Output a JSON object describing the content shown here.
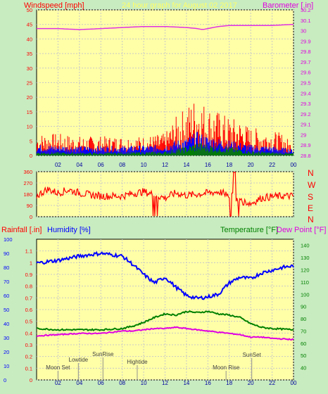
{
  "header": {
    "left_label": "Windspeed [mph]",
    "title": "24 hour graph for August 02 2017",
    "right_label": "Barometer [.in]"
  },
  "compass": [
    "N",
    "W",
    "S",
    "E",
    "N"
  ],
  "bottom_header": {
    "rainfall_label": "Rainfall [.in]",
    "humidity_label": "Humidity [%]",
    "temperature_label": "Temperature [°F]",
    "dewpoint_label": "Dew Point [°F]"
  },
  "events": [
    {
      "label": "Moon Set",
      "hour": 2.0
    },
    {
      "label": "Lowtide",
      "hour": 3.9
    },
    {
      "label": "SunRise",
      "hour": 6.2
    },
    {
      "label": "Hightide",
      "hour": 9.4
    },
    {
      "label": "Moon Rise",
      "hour": 17.7
    },
    {
      "label": "SunSet",
      "hour": 20.1
    }
  ],
  "colors": {
    "background": "#c8ecc0",
    "plot_bg": "#ffffa8",
    "windspeed": "#ff0000",
    "gust_avg": "#0000ff",
    "wind_green": "#008000",
    "barometer": "#e030e0",
    "humidity": "#0000ff",
    "temperature": "#008000",
    "dewpoint": "#e000e0",
    "direction": "#ff0000",
    "axis_left": "#ff0000",
    "axis_right": "#e000e0"
  },
  "chart_data": [
    {
      "type": "area",
      "title": "24 hour graph for August 02 2017",
      "ylabel": "Windspeed [mph]",
      "y2label": "Barometer [.in]",
      "ylim": [
        0,
        50
      ],
      "y2lim": [
        28.8,
        30.2
      ],
      "yticks": [
        0,
        5,
        10,
        15,
        20,
        25,
        30,
        35,
        40,
        45,
        50
      ],
      "y2ticks": [
        "28.8",
        "28.9",
        "29",
        "29.1",
        "29.2",
        "29.3",
        "29.4",
        "29.5",
        "29.6",
        "29.7",
        "29.8",
        "29.9",
        "30",
        "30.1",
        "30.2"
      ],
      "xticks": [
        "02",
        "04",
        "06",
        "08",
        "10",
        "12",
        "14",
        "16",
        "18",
        "20",
        "22",
        "00"
      ],
      "series": [
        {
          "role": "windspeed",
          "hours": [
            0,
            2,
            4,
            6,
            8,
            10,
            12,
            13,
            14,
            15,
            16,
            17,
            18,
            19,
            20,
            21,
            22,
            23,
            24
          ],
          "values": [
            4,
            4,
            3.5,
            3.5,
            3.5,
            3.5,
            4,
            7,
            9,
            11,
            9,
            8,
            7,
            6.5,
            5,
            5,
            4.5,
            4,
            2
          ]
        },
        {
          "role": "avg",
          "hours": [
            0,
            4,
            8,
            12,
            13,
            14,
            15,
            16,
            17,
            18,
            19,
            20,
            22,
            24
          ],
          "values": [
            2.5,
            2.2,
            2.2,
            2.5,
            3.5,
            4,
            5.5,
            4.5,
            4,
            3.5,
            3,
            2.5,
            2.2,
            1.5
          ]
        },
        {
          "role": "green",
          "hours": [
            0,
            6,
            12,
            13,
            14,
            15,
            16,
            17,
            18,
            19,
            20,
            24
          ],
          "values": [
            0.8,
            0.6,
            0.9,
            1.5,
            2,
            3,
            2.5,
            2.2,
            2,
            1.5,
            1,
            0.5
          ]
        },
        {
          "role": "barometer",
          "hours": [
            0,
            2,
            4,
            6,
            8,
            10,
            12,
            14,
            15,
            15.5,
            16,
            17,
            18,
            20,
            22,
            24
          ],
          "values": [
            30.02,
            30.02,
            30.01,
            30.02,
            30.03,
            30.04,
            30.04,
            30.03,
            30.02,
            30.01,
            30.02,
            30.04,
            30.05,
            30.05,
            30.05,
            30.06
          ]
        }
      ]
    },
    {
      "type": "line",
      "ylabel": "Wind direction",
      "ylim": [
        0,
        360
      ],
      "yticks": [
        0,
        90,
        180,
        270,
        360
      ],
      "xticks": [
        "02",
        "04",
        "06",
        "08",
        "10",
        "12",
        "14",
        "16",
        "18",
        "20",
        "22",
        "00"
      ],
      "series": [
        {
          "role": "direction",
          "hours": [
            0,
            1,
            2,
            3,
            4,
            5,
            6,
            7,
            8,
            9,
            10,
            11,
            12,
            13,
            14,
            15,
            16,
            17,
            18,
            19,
            20,
            21,
            22,
            23,
            24
          ],
          "values": [
            165,
            220,
            190,
            215,
            190,
            175,
            165,
            165,
            165,
            185,
            200,
            175,
            150,
            190,
            170,
            180,
            190,
            200,
            175,
            130,
            105,
            150,
            160,
            165,
            165
          ]
        }
      ]
    },
    {
      "type": "line",
      "ylabel": "Rainfall [.in]",
      "y2label": "Humidity [%]",
      "y3label": "Temperature [°F]",
      "y4label": "Dew Point [°F]",
      "ylim_humidity": [
        0,
        100
      ],
      "ylim_rain": [
        0,
        1.2
      ],
      "ylim_temp": [
        30,
        145
      ],
      "yticks_humidity": [
        0,
        10,
        20,
        30,
        40,
        50,
        60,
        70,
        80,
        90,
        100
      ],
      "yticks_rain": [
        "0",
        "0.1",
        "0.2",
        "0.3",
        "0.4",
        "0.5",
        "0.6",
        "0.7",
        "0.8",
        "0.9",
        "1",
        "1.1"
      ],
      "yticks_temp": [
        40,
        50,
        60,
        70,
        80,
        90,
        100,
        110,
        120,
        130,
        140
      ],
      "xticks": [
        "02",
        "04",
        "06",
        "08",
        "10",
        "12",
        "14",
        "16",
        "18",
        "20",
        "22",
        "00"
      ],
      "series": [
        {
          "role": "humidity",
          "hours": [
            0,
            2,
            4,
            6,
            7,
            8,
            9,
            10,
            11,
            12,
            13,
            14,
            15,
            16,
            17,
            18,
            19,
            20,
            21,
            22,
            23,
            24
          ],
          "values": [
            83,
            85,
            88,
            90,
            89,
            88,
            82,
            75,
            69,
            73,
            66,
            60,
            58,
            59,
            61,
            69,
            73,
            72,
            76,
            78,
            80,
            81
          ]
        },
        {
          "role": "temperature",
          "hours": [
            0,
            2,
            4,
            6,
            8,
            9,
            10,
            11,
            12,
            13,
            14,
            15,
            16,
            17,
            18,
            19,
            20,
            21,
            22,
            24
          ],
          "values": [
            72,
            71,
            71,
            71,
            72,
            74,
            77,
            81,
            84,
            83,
            86,
            85,
            86,
            84,
            83,
            81,
            76,
            73,
            72,
            71
          ]
        },
        {
          "role": "dewpoint",
          "hours": [
            0,
            2,
            4,
            6,
            8,
            9,
            10,
            11,
            12,
            13,
            14,
            15,
            16,
            17,
            18,
            19,
            20,
            21,
            22,
            24
          ],
          "values": [
            66,
            67,
            68,
            68,
            70,
            70,
            71,
            72,
            72,
            73,
            72,
            71,
            70,
            69,
            68,
            67,
            65,
            65,
            64,
            63
          ]
        }
      ]
    }
  ]
}
